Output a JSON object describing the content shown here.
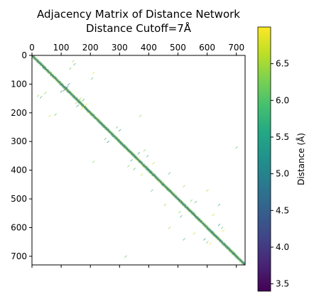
{
  "chart_data": {
    "type": "heatmap",
    "title": "Adjacency Matrix of Distance Network",
    "subtitle": "Distance Cutoff=7Å",
    "matrix_size": 730,
    "x_ticks": [
      0,
      100,
      200,
      300,
      400,
      500,
      600,
      700
    ],
    "y_ticks": [
      0,
      100,
      200,
      300,
      400,
      500,
      600,
      700
    ],
    "x_axis_position": "top",
    "x_range": [
      0,
      730
    ],
    "y_range": [
      730,
      0
    ],
    "grid": false,
    "colormap": "viridis",
    "colorbar": {
      "label": "Distance (Å)",
      "range": [
        3.4,
        7.0
      ],
      "ticks": [
        3.5,
        4.0,
        4.5,
        5.0,
        5.5,
        6.0,
        6.5
      ],
      "tick_labels": [
        "3.5",
        "4.0",
        "4.5",
        "5.0",
        "5.5",
        "6.0",
        "6.5"
      ],
      "position": "right"
    },
    "structure": {
      "main_band": "non-zero entries concentrated along the diagonal, within roughly ±8 residues",
      "off_diagonal_clusters": [
        {
          "i": 20,
          "j": 140,
          "value": 6.5
        },
        {
          "i": 30,
          "j": 145,
          "value": 5.8
        },
        {
          "i": 45,
          "j": 130,
          "value": 6.2
        },
        {
          "i": 60,
          "j": 210,
          "value": 6.8
        },
        {
          "i": 100,
          "j": 125,
          "value": 5.0
        },
        {
          "i": 110,
          "j": 120,
          "value": 4.5
        },
        {
          "i": 80,
          "j": 205,
          "value": 6.0
        },
        {
          "i": 150,
          "j": 165,
          "value": 6.6
        },
        {
          "i": 155,
          "j": 175,
          "value": 5.5
        },
        {
          "i": 170,
          "j": 185,
          "value": 6.9
        },
        {
          "i": 210,
          "j": 370,
          "value": 6.4
        },
        {
          "i": 250,
          "j": 290,
          "value": 6.1
        },
        {
          "i": 260,
          "j": 300,
          "value": 5.2
        },
        {
          "i": 340,
          "j": 365,
          "value": 5.4
        },
        {
          "i": 330,
          "j": 385,
          "value": 6.3
        },
        {
          "i": 350,
          "j": 395,
          "value": 5.9
        },
        {
          "i": 375,
          "j": 415,
          "value": 6.7
        },
        {
          "i": 410,
          "j": 470,
          "value": 6.0
        },
        {
          "i": 455,
          "j": 520,
          "value": 6.4
        },
        {
          "i": 505,
          "j": 545,
          "value": 6.2
        },
        {
          "i": 510,
          "j": 560,
          "value": 5.8
        },
        {
          "i": 555,
          "j": 620,
          "value": 6.6
        },
        {
          "i": 590,
          "j": 640,
          "value": 5.3
        },
        {
          "i": 600,
          "j": 650,
          "value": 6.1
        },
        {
          "i": 610,
          "j": 655,
          "value": 6.9
        },
        {
          "i": 320,
          "j": 700,
          "value": 6.0
        },
        {
          "i": 470,
          "j": 600,
          "value": 6.5
        },
        {
          "i": 520,
          "j": 640,
          "value": 5.7
        }
      ]
    }
  }
}
